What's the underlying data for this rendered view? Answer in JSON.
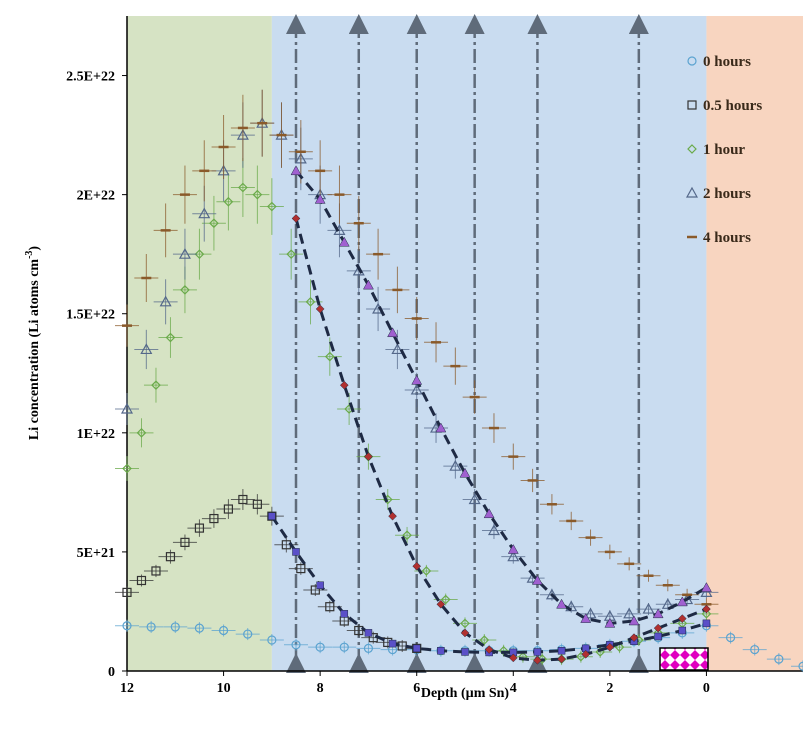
{
  "chart_data": {
    "type": "scatter",
    "title": "",
    "xlabel": "Depth (µm Sn)",
    "ylabel": "Li concentration (Li atoms cm",
    "ylabel_sup": "-3",
    "ylabel_close": ")",
    "xlim": [
      12,
      -2
    ],
    "ylim": [
      0,
      2.75e+22
    ],
    "x_ticks": [
      12,
      10,
      8,
      6,
      4,
      2,
      0
    ],
    "x_tick_labels": [
      "12",
      "10",
      "8",
      "6",
      "4",
      "2",
      "0"
    ],
    "y_ticks": [
      0,
      5e+21,
      1e+22,
      1.5e+22,
      2e+22,
      2.5e+22
    ],
    "y_tick_labels": [
      "0",
      "5E+21",
      "1E+22",
      "1.5E+22",
      "2E+22",
      "2.5E+22"
    ],
    "grid": false,
    "legend_position": "top-right",
    "regions": [
      {
        "x0": 12,
        "x1": 9,
        "color": "#d6e3c4"
      },
      {
        "x0": 9,
        "x1": 0,
        "color": "#c9dcf0"
      },
      {
        "x0": 0,
        "x1": -2,
        "color": "#f8d5c0"
      }
    ],
    "arrows": [
      8.5,
      7.2,
      6.0,
      4.8,
      3.5,
      1.4
    ],
    "colors": {
      "h0": "#5ba3d0",
      "h05": "#333333",
      "h1": "#6aaa4a",
      "h2": "#54688a",
      "h4": "#8a5a2a",
      "fit": "#1e2a44",
      "purple": "#a060d0",
      "red": "#b03030",
      "arrow": "#5f6b7a",
      "checker": "#e000c0"
    },
    "series": [
      {
        "name": "0 hours",
        "marker": "circle",
        "x": [
          12.0,
          11.5,
          11.0,
          10.5,
          10.0,
          9.5,
          9.0,
          8.5,
          8.0,
          7.5,
          7.0,
          6.5,
          6.0,
          5.5,
          5.0,
          4.5,
          4.0,
          3.5,
          3.0,
          2.5,
          2.0,
          1.5,
          1.0,
          0.5,
          0.0,
          -0.5,
          -1.0,
          -1.5,
          -2.0
        ],
        "y": [
          1.9e+21,
          1.85e+21,
          1.85e+21,
          1.8e+21,
          1.7e+21,
          1.55e+21,
          1.3e+21,
          1.1e+21,
          1e+21,
          1e+21,
          9.5e+20,
          9e+20,
          9e+20,
          8.5e+20,
          8.5e+20,
          8.5e+20,
          8.5e+20,
          8.5e+20,
          9e+20,
          9.5e+20,
          1.1e+21,
          1.25e+21,
          1.4e+21,
          1.6e+21,
          1.9e+21,
          1.4e+21,
          9e+20,
          5e+20,
          2e+20
        ]
      },
      {
        "name": "0.5 hours",
        "marker": "square",
        "x": [
          12.0,
          11.7,
          11.4,
          11.1,
          10.8,
          10.5,
          10.2,
          9.9,
          9.6,
          9.3,
          9.0,
          8.7,
          8.4,
          8.1,
          7.8,
          7.5,
          7.2,
          6.9,
          6.6,
          6.3,
          6.0
        ],
        "y": [
          3.3e+21,
          3.8e+21,
          4.2e+21,
          4.8e+21,
          5.4e+21,
          6e+21,
          6.4e+21,
          6.8e+21,
          7.2e+21,
          7e+21,
          6.5e+21,
          5.3e+21,
          4.3e+21,
          3.4e+21,
          2.7e+21,
          2.1e+21,
          1.7e+21,
          1.4e+21,
          1.2e+21,
          1.05e+21,
          9.5e+20
        ]
      },
      {
        "name": "1 hour",
        "marker": "diamond",
        "x": [
          12.0,
          11.7,
          11.4,
          11.1,
          10.8,
          10.5,
          10.2,
          9.9,
          9.6,
          9.3,
          9.0,
          8.6,
          8.2,
          7.8,
          7.4,
          7.0,
          6.6,
          6.2,
          5.8,
          5.4,
          5.0,
          4.6,
          4.2,
          3.8,
          3.4,
          3.0,
          2.6,
          2.2,
          1.8,
          1.4,
          1.0,
          0.5,
          0.0
        ],
        "y": [
          8.5e+21,
          1e+22,
          1.2e+22,
          1.4e+22,
          1.6e+22,
          1.75e+22,
          1.88e+22,
          1.97e+22,
          2.03e+22,
          2e+22,
          1.95e+22,
          1.75e+22,
          1.55e+22,
          1.32e+22,
          1.1e+22,
          9e+21,
          7.2e+21,
          5.7e+21,
          4.2e+21,
          3e+21,
          2e+21,
          1.3e+21,
          8.5e+20,
          6e+20,
          5e+20,
          5e+20,
          6e+20,
          8e+20,
          1e+21,
          1.3e+21,
          1.6e+21,
          2e+21,
          2.4e+21
        ]
      },
      {
        "name": "2 hours",
        "marker": "triangle",
        "x": [
          12.0,
          11.6,
          11.2,
          10.8,
          10.4,
          10.0,
          9.6,
          9.2,
          8.8,
          8.4,
          8.0,
          7.6,
          7.2,
          6.8,
          6.4,
          6.0,
          5.6,
          5.2,
          4.8,
          4.4,
          4.0,
          3.6,
          3.2,
          2.8,
          2.4,
          2.0,
          1.6,
          1.2,
          0.8,
          0.4,
          0.0
        ],
        "y": [
          1.1e+22,
          1.35e+22,
          1.55e+22,
          1.75e+22,
          1.92e+22,
          2.1e+22,
          2.25e+22,
          2.3e+22,
          2.25e+22,
          2.15e+22,
          2e+22,
          1.85e+22,
          1.68e+22,
          1.52e+22,
          1.35e+22,
          1.18e+22,
          1.02e+22,
          8.6e+21,
          7.2e+21,
          5.9e+21,
          4.8e+21,
          3.9e+21,
          3.2e+21,
          2.7e+21,
          2.4e+21,
          2.3e+21,
          2.4e+21,
          2.6e+21,
          2.8e+21,
          3e+21,
          3.3e+21
        ]
      },
      {
        "name": "4 hours",
        "marker": "dash",
        "x": [
          12.0,
          11.6,
          11.2,
          10.8,
          10.4,
          10.0,
          9.6,
          9.2,
          8.8,
          8.4,
          8.0,
          7.6,
          7.2,
          6.8,
          6.4,
          6.0,
          5.6,
          5.2,
          4.8,
          4.4,
          4.0,
          3.6,
          3.2,
          2.8,
          2.4,
          2.0,
          1.6,
          1.2,
          0.8,
          0.4,
          0.0
        ],
        "y": [
          1.45e+22,
          1.65e+22,
          1.85e+22,
          2e+22,
          2.1e+22,
          2.2e+22,
          2.28e+22,
          2.3e+22,
          2.25e+22,
          2.18e+22,
          2.1e+22,
          2e+22,
          1.88e+22,
          1.75e+22,
          1.6e+22,
          1.48e+22,
          1.38e+22,
          1.28e+22,
          1.15e+22,
          1.02e+22,
          9e+21,
          8e+21,
          7e+21,
          6.3e+21,
          5.6e+21,
          5e+21,
          4.5e+21,
          4e+21,
          3.6e+21,
          3.2e+21,
          2.8e+21
        ]
      }
    ],
    "fits": [
      {
        "x": [
          9.0,
          8.5,
          8.0,
          7.5,
          7.0,
          6.5,
          6.0,
          5.5,
          5.0,
          4.5,
          4.0,
          3.5,
          3.0,
          2.5,
          2.0,
          1.5,
          1.0,
          0.5,
          0.0
        ],
        "y": [
          6.5e+21,
          5e+21,
          3.6e+21,
          2.4e+21,
          1.6e+21,
          1.15e+21,
          9.5e+20,
          8.5e+20,
          8e+20,
          7.8e+20,
          7.8e+20,
          8e+20,
          8.5e+20,
          9.5e+20,
          1.1e+21,
          1.25e+21,
          1.45e+21,
          1.7e+21,
          2e+21
        ]
      },
      {
        "x": [
          8.5,
          8.0,
          7.5,
          7.0,
          6.5,
          6.0,
          5.5,
          5.0,
          4.5,
          4.0,
          3.5,
          3.0,
          2.5,
          2.0,
          1.5,
          1.0,
          0.5,
          0.0
        ],
        "y": [
          1.9e+22,
          1.52e+22,
          1.2e+22,
          9e+21,
          6.5e+21,
          4.4e+21,
          2.8e+21,
          1.6e+21,
          9e+20,
          5.5e+20,
          4.5e+20,
          5e+20,
          7e+20,
          1e+21,
          1.4e+21,
          1.8e+21,
          2.2e+21,
          2.6e+21
        ]
      },
      {
        "x": [
          8.5,
          8.0,
          7.5,
          7.0,
          6.5,
          6.0,
          5.5,
          5.0,
          4.5,
          4.0,
          3.5,
          3.0,
          2.5,
          2.0,
          1.5,
          1.0,
          0.5,
          0.0
        ],
        "y": [
          2.1e+22,
          1.98e+22,
          1.8e+22,
          1.62e+22,
          1.42e+22,
          1.22e+22,
          1.02e+22,
          8.3e+21,
          6.6e+21,
          5.1e+21,
          3.8e+21,
          2.8e+21,
          2.2e+21,
          2e+21,
          2.1e+21,
          2.4e+21,
          2.9e+21,
          3.5e+21
        ]
      }
    ]
  }
}
